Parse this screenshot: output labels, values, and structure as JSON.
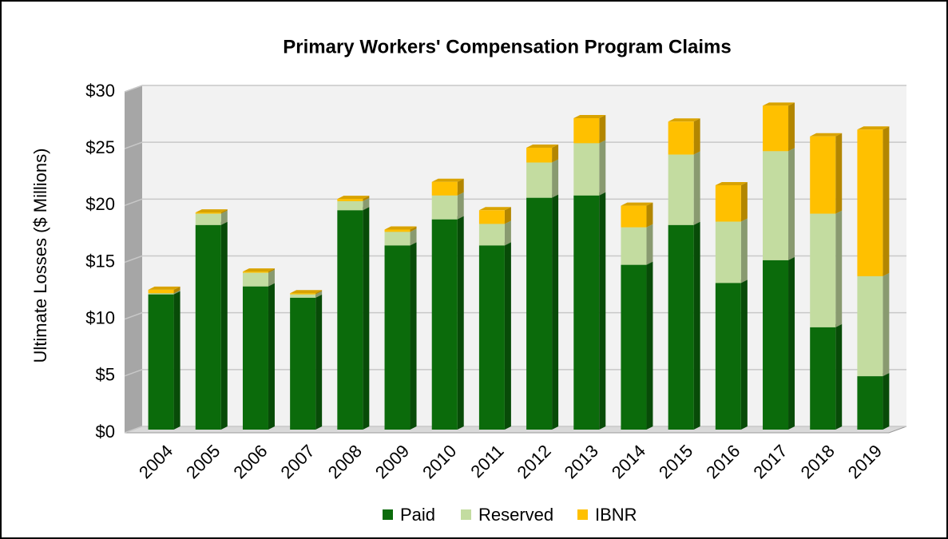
{
  "chart_data": {
    "type": "stacked-bar",
    "title": "Primary Workers' Compensation Program Claims",
    "y_label": "Ultimate Losses ($ Millions)",
    "categories": [
      "2004",
      "2005",
      "2006",
      "2007",
      "2008",
      "2009",
      "2010",
      "2011",
      "2012",
      "2013",
      "2014",
      "2015",
      "2016",
      "2017",
      "2018",
      "2019"
    ],
    "series": [
      {
        "name": "Paid",
        "color": "#0b6b0b",
        "values": [
          11.9,
          18.0,
          12.6,
          11.6,
          19.3,
          16.2,
          18.5,
          16.2,
          20.4,
          20.6,
          14.5,
          18.0,
          12.9,
          14.9,
          9.0,
          4.7
        ]
      },
      {
        "name": "Reserved",
        "color": "#c3dca0",
        "values": [
          0.1,
          1.0,
          1.2,
          0.3,
          0.8,
          1.2,
          2.1,
          1.9,
          3.1,
          4.6,
          3.3,
          6.2,
          5.4,
          9.6,
          10.0,
          8.8
        ]
      },
      {
        "name": "IBNR",
        "color": "#ffc000",
        "values": [
          0.3,
          0.1,
          0.1,
          0.1,
          0.2,
          0.2,
          1.2,
          1.2,
          1.3,
          2.2,
          1.9,
          2.9,
          3.2,
          4.0,
          6.8,
          12.9
        ]
      }
    ],
    "ylim": [
      0,
      30
    ],
    "yticks": [
      {
        "value": 0,
        "label": "$0"
      },
      {
        "value": 5,
        "label": "$5"
      },
      {
        "value": 10,
        "label": "$10"
      },
      {
        "value": 15,
        "label": "$15"
      },
      {
        "value": 20,
        "label": "$20"
      },
      {
        "value": 25,
        "label": "$25"
      },
      {
        "value": 30,
        "label": "$30"
      }
    ],
    "grid": true,
    "legend": "bottom"
  }
}
